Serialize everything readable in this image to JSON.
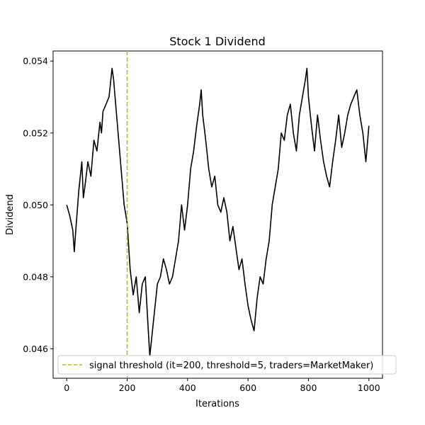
{
  "chart_data": {
    "type": "line",
    "title": "Stock 1 Dividend",
    "xlabel": "Iterations",
    "ylabel": "Dividend",
    "xlim": [
      -45,
      1045
    ],
    "ylim": [
      0.04518,
      0.05428
    ],
    "xticks": [
      0,
      200,
      400,
      600,
      800,
      1000
    ],
    "yticks": [
      0.046,
      0.048,
      0.05,
      0.052,
      0.054
    ],
    "xtick_labels": [
      "0",
      "200",
      "400",
      "600",
      "800",
      "1000"
    ],
    "ytick_labels": [
      "0.046",
      "0.048",
      "0.050",
      "0.052",
      "0.054"
    ],
    "grid": false,
    "legend": {
      "placement": "lower-right"
    },
    "series": [
      {
        "color": "#000000",
        "style": "solid",
        "x": [
          0,
          10,
          20,
          25,
          30,
          40,
          50,
          55,
          60,
          70,
          80,
          90,
          100,
          110,
          115,
          120,
          130,
          140,
          150,
          155,
          160,
          170,
          180,
          190,
          200,
          210,
          220,
          230,
          240,
          250,
          260,
          270,
          275,
          280,
          290,
          300,
          310,
          320,
          330,
          340,
          350,
          360,
          370,
          380,
          390,
          400,
          410,
          420,
          430,
          440,
          445,
          450,
          460,
          470,
          480,
          490,
          500,
          510,
          520,
          530,
          540,
          550,
          560,
          570,
          580,
          590,
          600,
          610,
          620,
          630,
          640,
          650,
          660,
          670,
          680,
          690,
          700,
          710,
          720,
          730,
          740,
          750,
          760,
          770,
          780,
          790,
          795,
          800,
          810,
          820,
          830,
          840,
          850,
          860,
          870,
          880,
          890,
          900,
          910,
          920,
          930,
          940,
          950,
          960,
          970,
          980,
          990,
          1000
        ],
        "y": [
          0.05,
          0.0497,
          0.0493,
          0.0487,
          0.0493,
          0.0504,
          0.0512,
          0.0502,
          0.0505,
          0.0512,
          0.0508,
          0.0518,
          0.0515,
          0.0523,
          0.052,
          0.0526,
          0.0528,
          0.053,
          0.0538,
          0.0535,
          0.053,
          0.052,
          0.051,
          0.05,
          0.0495,
          0.0482,
          0.0475,
          0.048,
          0.047,
          0.0478,
          0.048,
          0.0465,
          0.0458,
          0.0462,
          0.047,
          0.0478,
          0.048,
          0.0485,
          0.0482,
          0.0478,
          0.048,
          0.0485,
          0.049,
          0.05,
          0.0493,
          0.05,
          0.051,
          0.0515,
          0.0522,
          0.0528,
          0.0532,
          0.0525,
          0.0518,
          0.051,
          0.0505,
          0.0508,
          0.05,
          0.0498,
          0.0502,
          0.0498,
          0.049,
          0.0494,
          0.0488,
          0.0482,
          0.0485,
          0.0478,
          0.0472,
          0.0468,
          0.0465,
          0.0474,
          0.048,
          0.0478,
          0.0485,
          0.049,
          0.05,
          0.0505,
          0.051,
          0.052,
          0.0518,
          0.0525,
          0.0528,
          0.052,
          0.0515,
          0.0525,
          0.053,
          0.0535,
          0.0538,
          0.053,
          0.0522,
          0.0515,
          0.0525,
          0.0518,
          0.0512,
          0.0508,
          0.0505,
          0.0512,
          0.0518,
          0.0525,
          0.0516,
          0.052,
          0.0525,
          0.0528,
          0.053,
          0.0532,
          0.0525,
          0.052,
          0.0512,
          0.0522
        ]
      },
      {
        "name": "signal threshold (it=200, threshold=5, traders=MarketMaker)",
        "color": "#bfbf00",
        "style": "dashed",
        "type": "vline",
        "x_value": 200
      }
    ]
  }
}
